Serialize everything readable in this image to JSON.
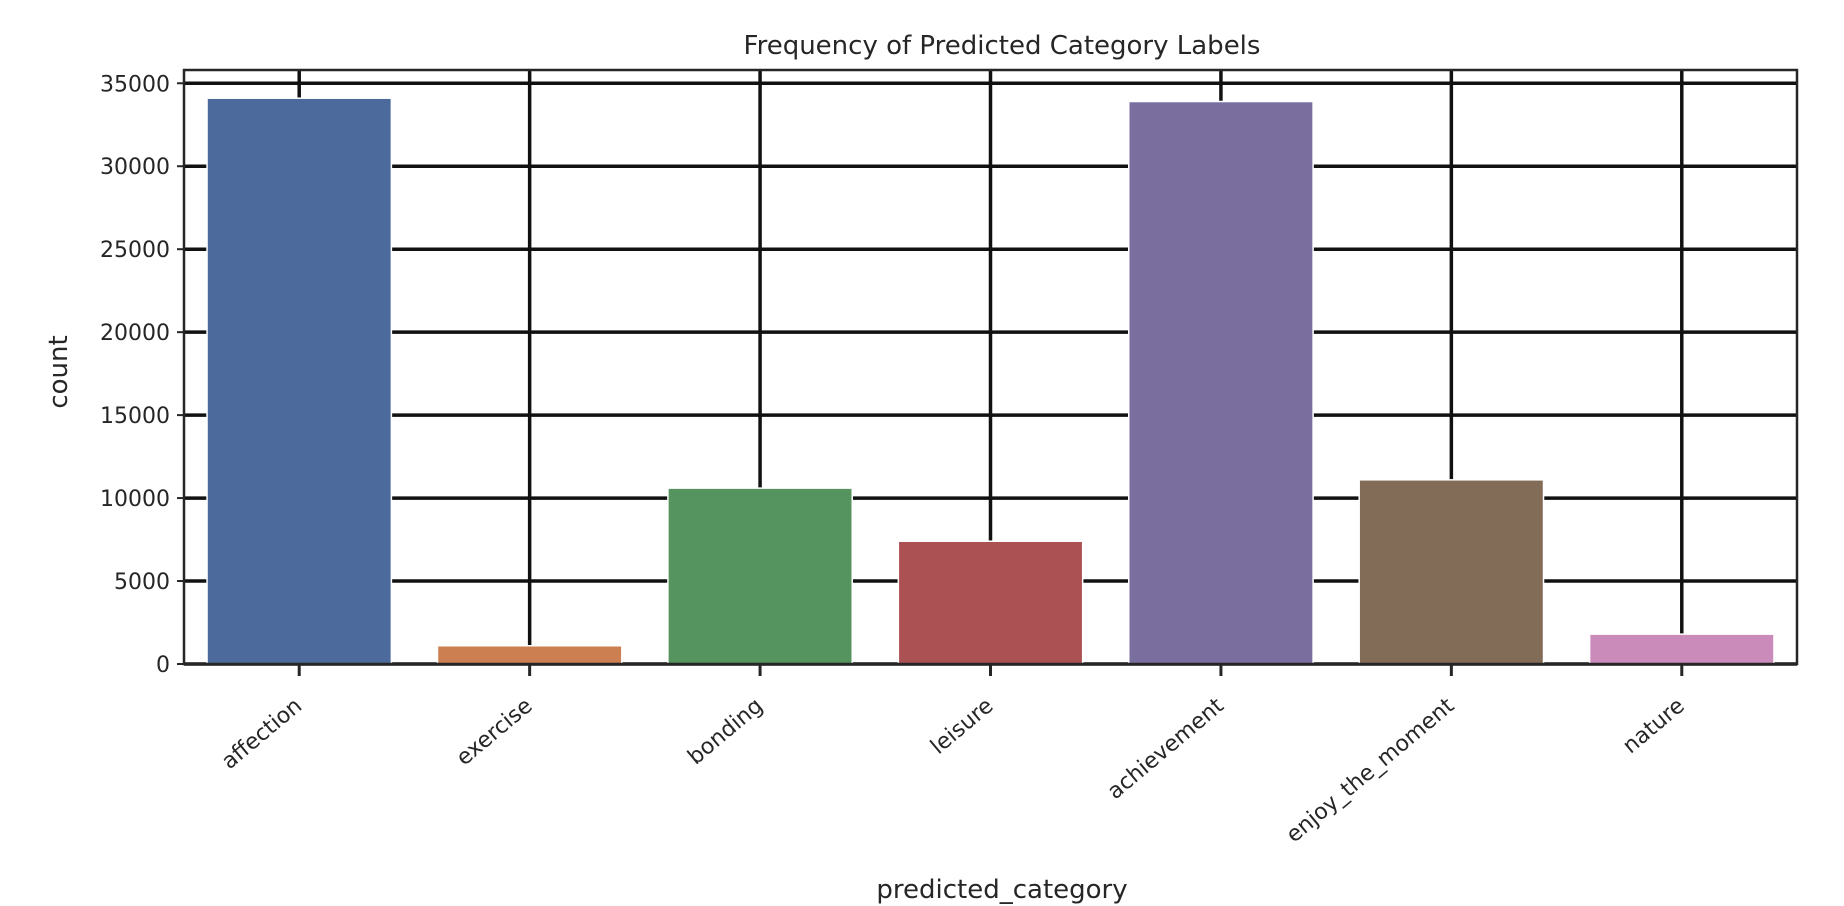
{
  "chart_data": {
    "type": "bar",
    "title": "Frequency of Predicted Category Labels",
    "xlabel": "predicted_category",
    "ylabel": "count",
    "categories": [
      "affection",
      "exercise",
      "bonding",
      "leisure",
      "achievement",
      "enjoy_the_moment",
      "nature"
    ],
    "values": [
      34100,
      1100,
      10600,
      7400,
      33900,
      11100,
      1800
    ],
    "colors": [
      "#4c6a9b",
      "#cc7f51",
      "#55935f",
      "#ab5153",
      "#7a6e9f",
      "#826c58",
      "#ca8bbb"
    ],
    "ylim": [
      0,
      35800
    ],
    "yticks": [
      0,
      5000,
      10000,
      15000,
      20000,
      25000,
      30000,
      35000
    ],
    "grid": true
  }
}
